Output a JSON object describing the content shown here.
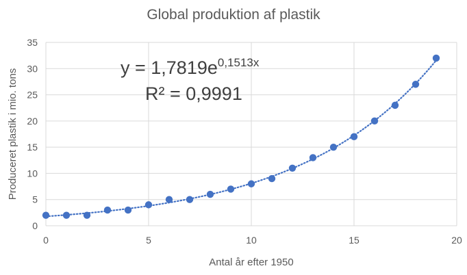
{
  "chart_data": {
    "type": "scatter",
    "title": "Global produktion af plastik",
    "xlabel": "Antal år efter 1950",
    "ylabel": "Produceret plastik i mio. tons",
    "xlim": [
      0,
      20
    ],
    "ylim": [
      0,
      35
    ],
    "xticks": [
      "0",
      "5",
      "10",
      "15",
      "20"
    ],
    "yticks": [
      "0",
      "5",
      "10",
      "15",
      "20",
      "25",
      "30",
      "35"
    ],
    "grid": true,
    "x": [
      0,
      1,
      2,
      3,
      4,
      5,
      6,
      7,
      8,
      9,
      10,
      11,
      12,
      13,
      14,
      15,
      16,
      17,
      18,
      19
    ],
    "y": [
      2,
      2,
      2,
      3,
      3,
      4,
      5,
      5,
      6,
      7,
      8,
      9,
      11,
      13,
      15,
      17,
      20,
      23,
      27,
      32
    ],
    "point_color": "#4472C4",
    "trendline": {
      "type": "exponential",
      "a": 1.7819,
      "b": 0.1513,
      "color": "#4472C4",
      "style": "dotted",
      "equation_base": "y = 1,7819e",
      "equation_exponent": "0,1513x",
      "r_squared": "R² = 0,9991"
    }
  }
}
